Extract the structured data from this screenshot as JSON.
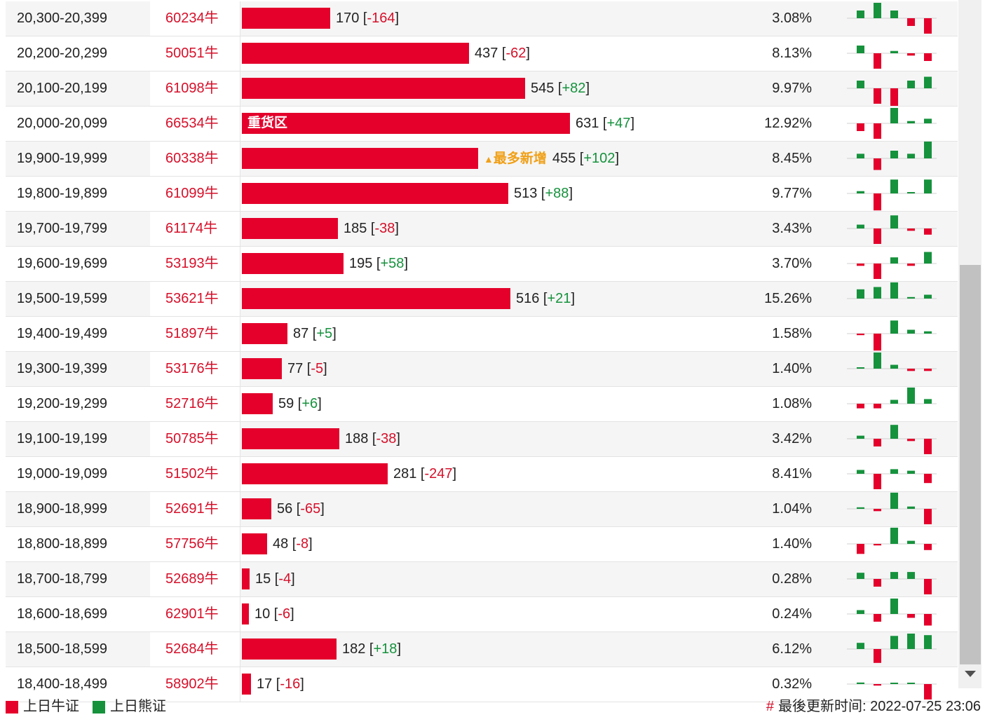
{
  "colors": {
    "bull": "#e4002b",
    "bear": "#16923d",
    "neutral": "#222222"
  },
  "bar_scale_max": 631,
  "rows": [
    {
      "range": "20,300-20,399",
      "code": "60234牛",
      "count": "170",
      "change": "-164",
      "pct": "3.08%",
      "mini": [
        1,
        2,
        1,
        -1,
        -2
      ]
    },
    {
      "range": "20,200-20,299",
      "code": "50051牛",
      "count": "437",
      "change": "-62",
      "pct": "8.13%",
      "mini": [
        1,
        -2,
        0.3,
        -0.3,
        -1
      ]
    },
    {
      "range": "20,100-20,199",
      "code": "61098牛",
      "count": "545",
      "change": "+82",
      "pct": "9.97%",
      "mini": [
        1,
        -2,
        -2.3,
        1,
        1.5
      ]
    },
    {
      "range": "20,000-20,099",
      "code": "66534牛",
      "count": "631",
      "change": "+47",
      "pct": "12.92%",
      "mini": [
        -1,
        -2,
        2,
        0.3,
        0.6
      ],
      "zone": "重货区"
    },
    {
      "range": "19,900-19,999",
      "code": "60338牛",
      "count": "455",
      "change": "+102",
      "pct": "8.45%",
      "mini": [
        0.6,
        -1.5,
        1,
        0.6,
        2.2
      ],
      "flag": "最多新增"
    },
    {
      "range": "19,800-19,899",
      "code": "61099牛",
      "count": "513",
      "change": "+88",
      "pct": "9.77%",
      "mini": [
        0.3,
        -2.2,
        1.8,
        0,
        1.8
      ]
    },
    {
      "range": "19,700-19,799",
      "code": "61174牛",
      "count": "185",
      "change": "-38",
      "pct": "3.43%",
      "mini": [
        0.5,
        -2,
        1.7,
        -0.3,
        -0.8
      ]
    },
    {
      "range": "19,600-19,699",
      "code": "53193牛",
      "count": "195",
      "change": "+58",
      "pct": "3.70%",
      "mini": [
        -0.3,
        -2,
        0.8,
        -0.3,
        1.5
      ]
    },
    {
      "range": "19,500-19,599",
      "code": "53621牛",
      "count": "516",
      "change": "+21",
      "pct": "15.26%",
      "mini": [
        1.2,
        1.5,
        2.1,
        0.2,
        0.5
      ]
    },
    {
      "range": "19,400-19,499",
      "code": "51897牛",
      "count": "87",
      "change": "+5",
      "pct": "1.58%",
      "mini": [
        -0.2,
        -2.2,
        1.7,
        0.5,
        0.3
      ]
    },
    {
      "range": "19,300-19,399",
      "code": "53176牛",
      "count": "77",
      "change": "-5",
      "pct": "1.40%",
      "mini": [
        0,
        2.1,
        0.5,
        -0.3,
        -0.3
      ]
    },
    {
      "range": "19,200-19,299",
      "code": "52716牛",
      "count": "59",
      "change": "+6",
      "pct": "1.08%",
      "mini": [
        -0.6,
        -0.6,
        0.5,
        2.1,
        0.6
      ]
    },
    {
      "range": "19,100-19,199",
      "code": "50785牛",
      "count": "188",
      "change": "-38",
      "pct": "3.42%",
      "mini": [
        0.4,
        -1,
        1.8,
        -0.3,
        -2
      ]
    },
    {
      "range": "19,000-19,099",
      "code": "51502牛",
      "count": "281",
      "change": "-247",
      "pct": "8.41%",
      "mini": [
        0.5,
        -2,
        0.6,
        0.4,
        -1.2
      ]
    },
    {
      "range": "18,900-18,999",
      "code": "52691牛",
      "count": "56",
      "change": "-65",
      "pct": "1.04%",
      "mini": [
        0.2,
        -0.3,
        2.1,
        0.3,
        -2
      ]
    },
    {
      "range": "18,800-18,899",
      "code": "57756牛",
      "count": "48",
      "change": "-8",
      "pct": "1.40%",
      "mini": [
        -1.3,
        -0.2,
        2.1,
        0.4,
        -0.8
      ]
    },
    {
      "range": "18,700-18,799",
      "code": "52689牛",
      "count": "15",
      "change": "-4",
      "pct": "0.28%",
      "mini": [
        0.8,
        -1,
        0.9,
        0.9,
        -2
      ]
    },
    {
      "range": "18,600-18,699",
      "code": "62901牛",
      "count": "10",
      "change": "-6",
      "pct": "0.24%",
      "mini": [
        0.5,
        -1,
        2,
        -0.5,
        -1.5
      ]
    },
    {
      "range": "18,500-18,599",
      "code": "52684牛",
      "count": "182",
      "change": "+18",
      "pct": "6.12%",
      "mini": [
        0.8,
        -1.8,
        1.7,
        2,
        1.8
      ]
    },
    {
      "range": "18,400-18,499",
      "code": "58902牛",
      "count": "17",
      "change": "-16",
      "pct": "0.32%",
      "mini": [
        0.2,
        -0.2,
        0,
        0,
        -2
      ]
    }
  ],
  "footer": {
    "legend_bull": "上日牛证",
    "legend_bear": "上日熊证",
    "hash": "#",
    "updated_label": "最後更新时间:",
    "updated_time": "2022-07-25 23:06"
  }
}
